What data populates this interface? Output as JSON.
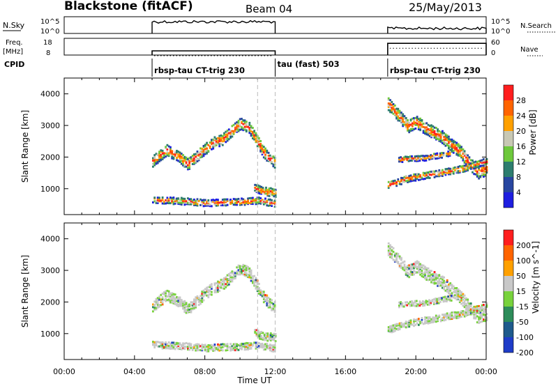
{
  "header": {
    "station": "Blackstone (fitACF)",
    "beam": "Beam 04",
    "date": "25/May/2013"
  },
  "chart_data": [
    {
      "type": "line",
      "panel": "noise",
      "left_label": "N.Sky",
      "right_label": "N.Search",
      "left_ticks": [
        "10^5",
        "10^0"
      ],
      "right_ticks": [
        "10^5",
        "10^0"
      ],
      "segments": [
        {
          "x_start": 5.0,
          "x_end": 12.0,
          "level": 0.7
        },
        {
          "x_start": 18.4,
          "x_end": 24.0,
          "level": 0.3
        }
      ]
    },
    {
      "type": "line",
      "panel": "frequency",
      "left_label_top": "Freq.",
      "left_label_bottom": "[MHz]",
      "right_label": "Nave",
      "left_ticks": [
        18,
        8
      ],
      "right_ticks": [
        60,
        0
      ],
      "segments": [
        {
          "x_start": 5.0,
          "x_end": 12.0,
          "freq": 10.5
        },
        {
          "x_start": 18.4,
          "x_end": 24.0,
          "freq": 15.0
        }
      ]
    },
    {
      "type": "table",
      "panel": "cpid",
      "label": "CPID",
      "programs": [
        {
          "x": 5.0,
          "text": "rbsp-tau CT-trig 230"
        },
        {
          "x": 12.0,
          "text": "tau (fast) 503"
        },
        {
          "x": 18.4,
          "text": "rbsp-tau CT-trig 230"
        }
      ]
    },
    {
      "type": "heatmap",
      "panel": "power",
      "ylabel": "Slant Range [km]",
      "yticks": [
        1000,
        2000,
        3000,
        4000
      ],
      "ylim": [
        180,
        4500
      ],
      "xlim": [
        0,
        24
      ],
      "colorbar_label": "Power [dB]",
      "colorbar_ticks": [
        4,
        8,
        12,
        16,
        20,
        24,
        28
      ],
      "colors": [
        "#1e1ee0",
        "#2846a0",
        "#2d7d6e",
        "#6ec83c",
        "#c8c8b4",
        "#ffa000",
        "#ff6400",
        "#ff1e1e"
      ],
      "bands": [
        {
          "t": [
            5.0,
            5.8,
            6.5,
            7.0,
            7.5,
            8.0,
            8.5,
            9.0,
            9.5,
            10.0,
            10.5,
            11.0,
            11.3,
            11.6,
            12.0
          ],
          "r": [
            1850,
            2200,
            2000,
            1750,
            2000,
            2250,
            2450,
            2550,
            2800,
            3050,
            2900,
            2450,
            2150,
            1950,
            1800
          ],
          "w": 170
        },
        {
          "t": [
            5.0,
            6.0,
            7.0,
            8.0,
            9.0,
            10.0,
            11.0,
            12.0
          ],
          "r": [
            620,
            600,
            570,
            520,
            540,
            560,
            600,
            500
          ],
          "w": 90
        },
        {
          "t": [
            10.8,
            11.3,
            12.0
          ],
          "r": [
            1000,
            900,
            850
          ],
          "w": 120
        },
        {
          "t": [
            18.4,
            19.0,
            19.5,
            20.0,
            20.5,
            21.0,
            21.5,
            22.0,
            22.5,
            23.0,
            23.5,
            24.0
          ],
          "r": [
            3650,
            3300,
            2950,
            3100,
            2900,
            2750,
            2600,
            2350,
            2150,
            1800,
            1500,
            1600
          ],
          "w": 190
        },
        {
          "t": [
            18.4,
            19.5,
            20.5,
            21.5,
            22.5,
            24.0
          ],
          "r": [
            1100,
            1300,
            1400,
            1500,
            1600,
            1850
          ],
          "w": 100
        },
        {
          "t": [
            19.0,
            20.5,
            22.0
          ],
          "r": [
            1900,
            1950,
            2100
          ],
          "w": 70
        }
      ]
    },
    {
      "type": "heatmap",
      "panel": "velocity",
      "ylabel": "Slant Range [km]",
      "yticks": [
        1000,
        2000,
        3000,
        4000
      ],
      "ylim": [
        180,
        4500
      ],
      "xlim": [
        0,
        24
      ],
      "xlabel": "Time UT",
      "xticks": [
        "00:00",
        "04:00",
        "08:00",
        "12:00",
        "16:00",
        "20:00",
        "00:00"
      ],
      "colorbar_label": "Velocity [m s^-1]",
      "colorbar_ticks": [
        200,
        100,
        50,
        15,
        -15,
        -50,
        -100,
        -200
      ],
      "colors": [
        "#1e3cc8",
        "#1e5a8c",
        "#2d8c5a",
        "#78d23c",
        "#c8c8c8",
        "#ffa000",
        "#ff6400",
        "#ff1e1e"
      ],
      "bands": [
        {
          "t": [
            5.0,
            5.8,
            6.5,
            7.0,
            7.5,
            8.0,
            8.5,
            9.0,
            9.5,
            10.0,
            10.5,
            11.0,
            11.3,
            11.6,
            12.0
          ],
          "r": [
            1850,
            2200,
            2000,
            1750,
            2000,
            2250,
            2450,
            2550,
            2800,
            3050,
            2900,
            2450,
            2150,
            1950,
            1800
          ],
          "w": 170
        },
        {
          "t": [
            5.0,
            6.0,
            7.0,
            8.0,
            9.0,
            10.0,
            11.0,
            12.0
          ],
          "r": [
            620,
            600,
            570,
            520,
            540,
            560,
            600,
            500
          ],
          "w": 90
        },
        {
          "t": [
            10.8,
            11.3,
            12.0
          ],
          "r": [
            1000,
            900,
            850
          ],
          "w": 120
        },
        {
          "t": [
            18.4,
            19.0,
            19.5,
            20.0,
            20.5,
            21.0,
            21.5,
            22.0,
            22.5,
            23.0,
            23.5,
            24.0
          ],
          "r": [
            3650,
            3300,
            2950,
            3100,
            2900,
            2750,
            2600,
            2350,
            2150,
            1800,
            1500,
            1600
          ],
          "w": 190
        },
        {
          "t": [
            18.4,
            19.5,
            20.5,
            21.5,
            22.5,
            24.0
          ],
          "r": [
            1100,
            1300,
            1400,
            1500,
            1600,
            1850
          ],
          "w": 100
        },
        {
          "t": [
            19.0,
            20.5,
            22.0
          ],
          "r": [
            1900,
            1950,
            2100
          ],
          "w": 70
        }
      ]
    }
  ]
}
